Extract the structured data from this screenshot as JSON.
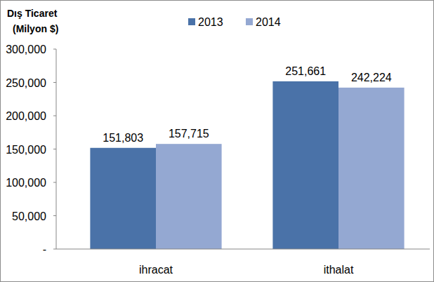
{
  "chart_data": {
    "type": "bar",
    "title": "Dış Ticaret",
    "subtitle": "(Milyon $)",
    "categories": [
      "ihracat",
      "ithalat"
    ],
    "series": [
      {
        "name": "2013",
        "color": "#4a72a8",
        "values": [
          151803,
          251661
        ],
        "value_labels": [
          "151,803",
          "251,661"
        ]
      },
      {
        "name": "2014",
        "color": "#94a8d2",
        "values": [
          157715,
          242224
        ],
        "value_labels": [
          "157,715",
          "242,224"
        ]
      }
    ],
    "ylim": [
      0,
      300000
    ],
    "yticks": [
      {
        "value": 0,
        "label": "-"
      },
      {
        "value": 50000,
        "label": "50,000"
      },
      {
        "value": 100000,
        "label": "100,000"
      },
      {
        "value": 150000,
        "label": "150,000"
      },
      {
        "value": 200000,
        "label": "200,000"
      },
      {
        "value": 250000,
        "label": "250,000"
      },
      {
        "value": 300000,
        "label": "300,000"
      }
    ],
    "grid": false,
    "legend": "top",
    "data_labels": true
  }
}
